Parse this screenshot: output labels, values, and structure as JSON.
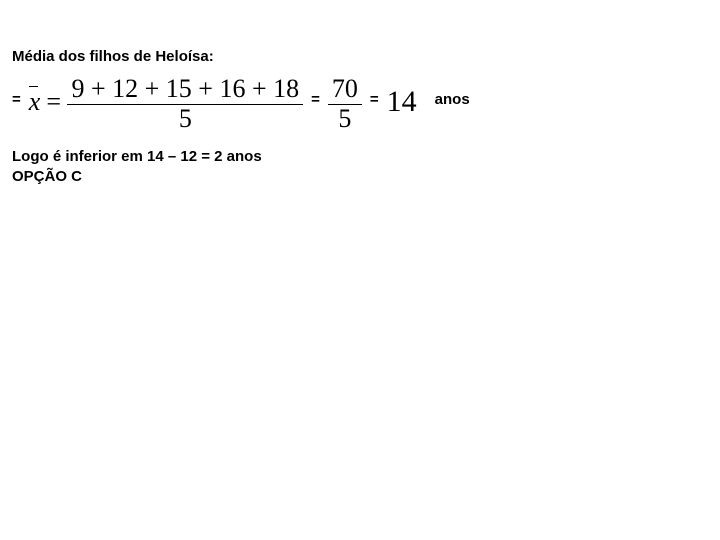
{
  "title": "Média dos filhos de Heloísa:",
  "eq_symbol": "=",
  "mean_expr": {
    "xbar_var": "x",
    "assign": "=",
    "numerator": "9 + 12 + 15 + 16 + 18",
    "denominator": "5"
  },
  "frac2": {
    "numerator": "70",
    "denominator": "5"
  },
  "result": "14",
  "unit": "anos",
  "conclusion_line1": "Logo é inferior em 14 – 12 = 2 anos",
  "conclusion_line2": "OPÇÃO C",
  "colors": {
    "background": "#ffffff",
    "text": "#000000"
  }
}
